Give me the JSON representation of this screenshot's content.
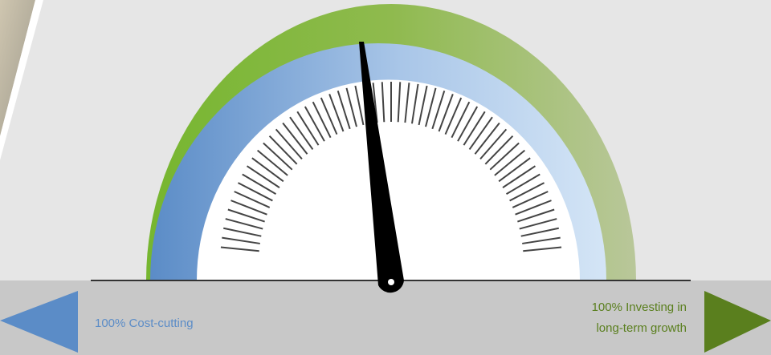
{
  "left_label": "100% Cost-cutting",
  "right_label": [
    "100% Investing in",
    "long-term growth"
  ]
}
